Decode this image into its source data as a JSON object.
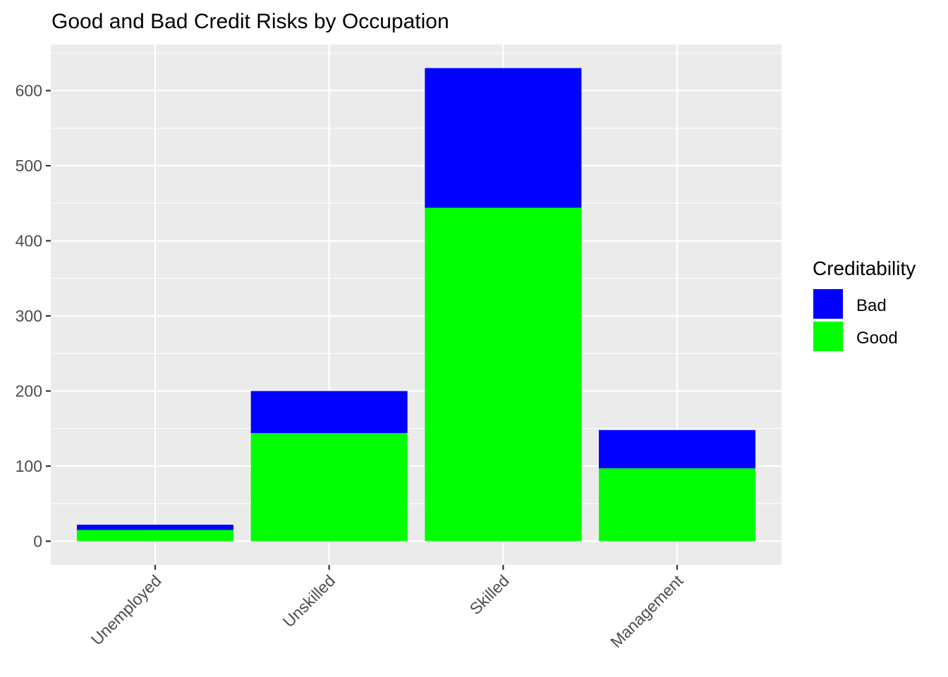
{
  "chart_data": {
    "type": "bar",
    "stacked": true,
    "title": "Good and Bad Credit Risks by Occupation",
    "xlabel": "",
    "ylabel": "",
    "categories": [
      "Unemployed",
      "Unskilled",
      "Skilled",
      "Management"
    ],
    "series": [
      {
        "name": "Good",
        "values": [
          15,
          144,
          444,
          97
        ],
        "color": "#00FF00"
      },
      {
        "name": "Bad",
        "values": [
          7,
          56,
          186,
          51
        ],
        "color": "#0000FF"
      }
    ],
    "ylim": [
      -31.5,
      661.5
    ],
    "y_ticks": [
      0,
      100,
      200,
      300,
      400,
      500,
      600
    ],
    "y_tick_labels": [
      "0",
      "100",
      "200",
      "300",
      "400",
      "500",
      "600"
    ],
    "x_tick_rotation": 45,
    "grid": true,
    "panel_background": "#EBEBEB",
    "gridline_color": "#FFFFFF",
    "legend": {
      "title": "Creditability",
      "placement": "right",
      "entries": [
        {
          "label": "Bad",
          "color": "#0000FF"
        },
        {
          "label": "Good",
          "color": "#00FF00"
        }
      ]
    }
  }
}
